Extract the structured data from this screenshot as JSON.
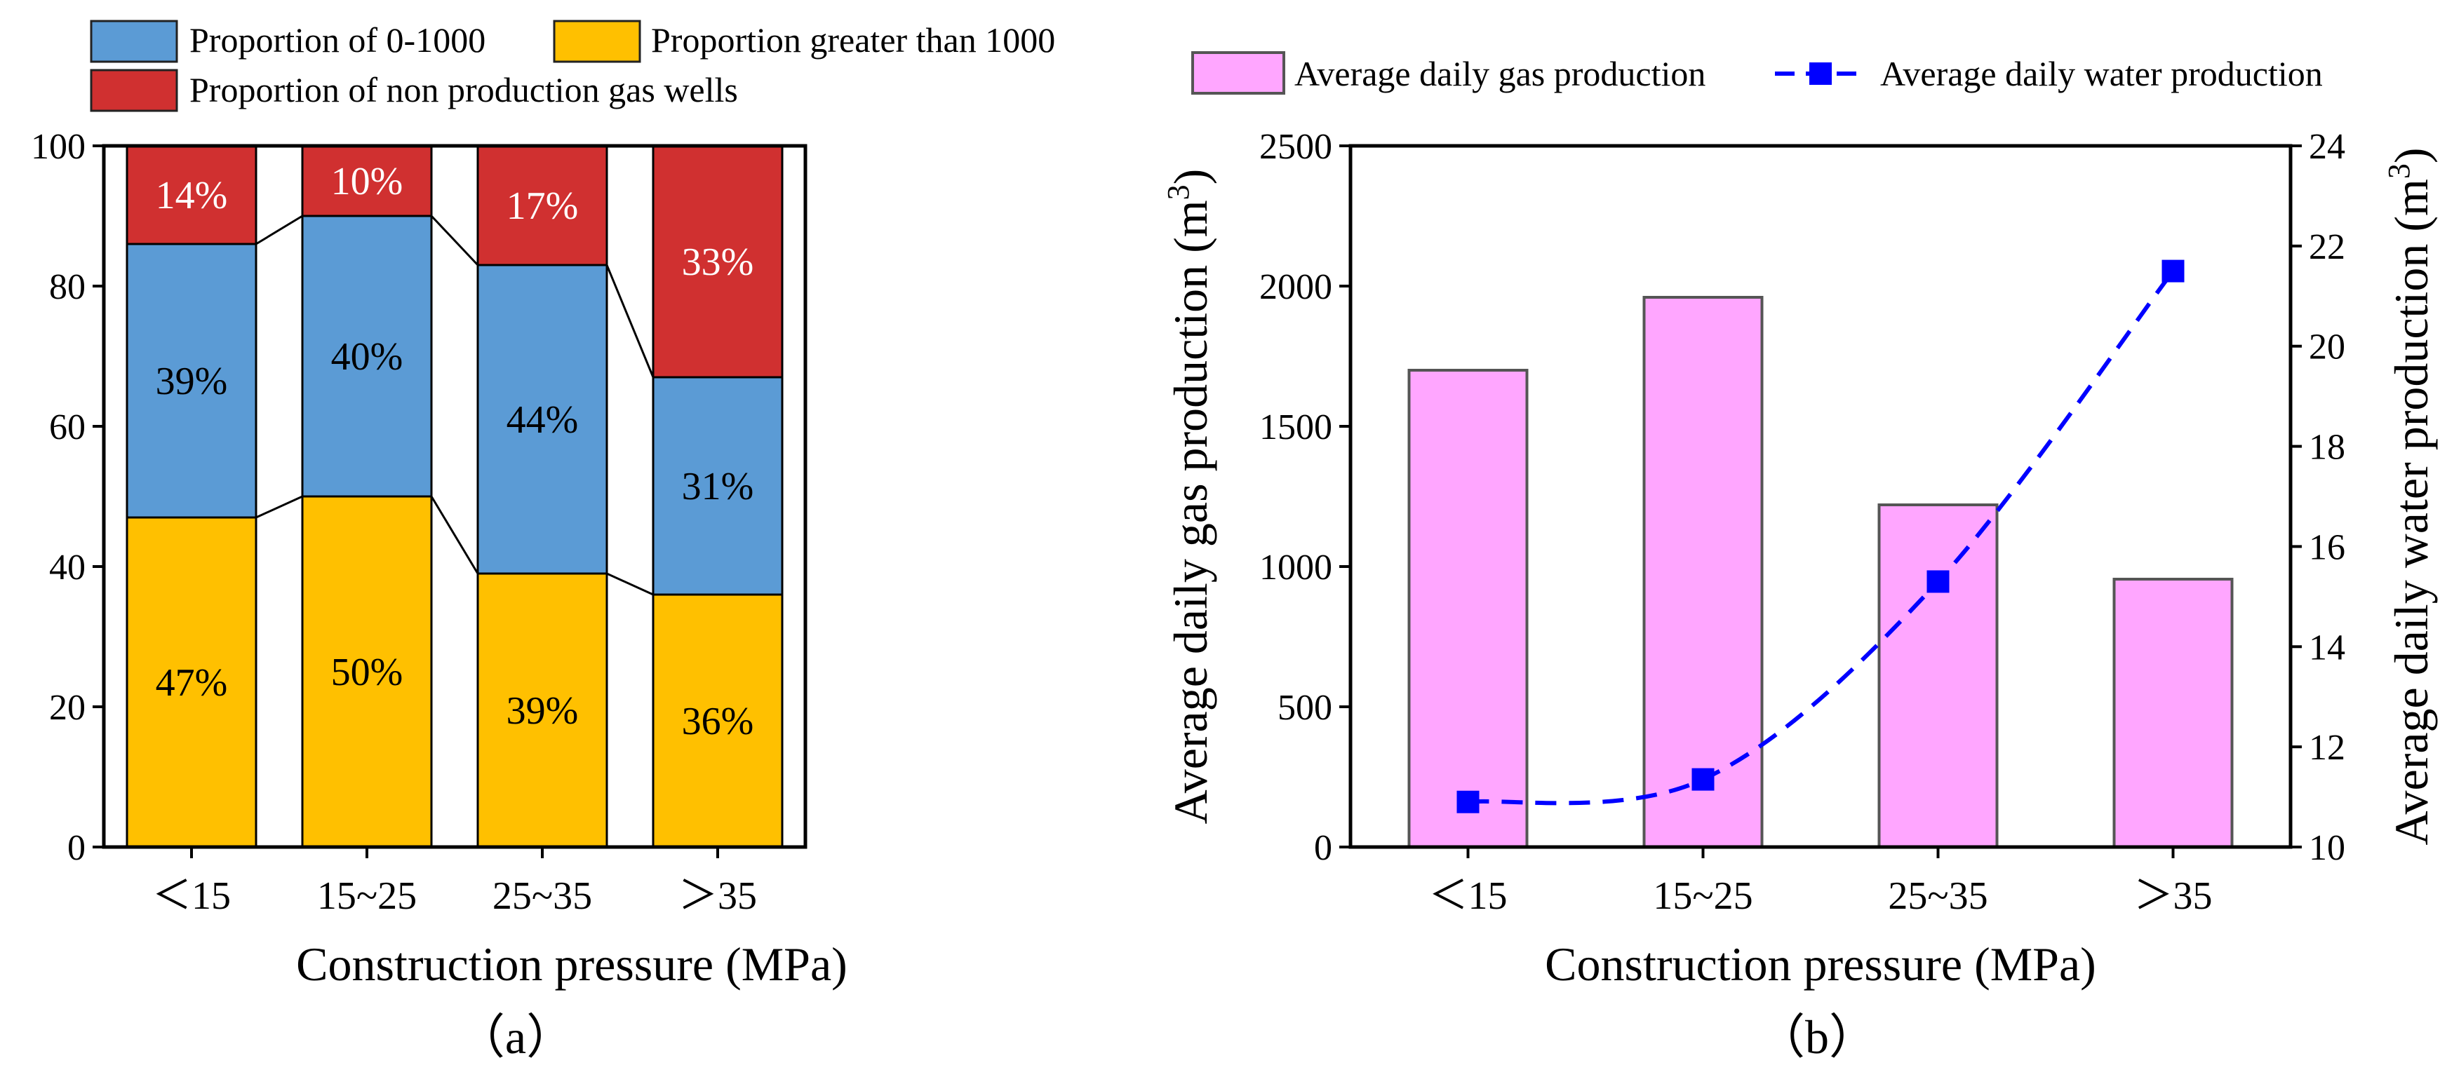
{
  "chart_data": [
    {
      "type": "bar",
      "stacked": true,
      "panel_label": "（a）",
      "xlabel": "Construction pressure (MPa)",
      "ylabel": "",
      "categories": [
        "＜15",
        "15~25",
        "25~35",
        "＞35"
      ],
      "ylim": [
        0,
        100
      ],
      "yticks": [
        0,
        20,
        40,
        60,
        80,
        100
      ],
      "series": [
        {
          "name": "Proportion greater than 1000",
          "color": "#FFC000",
          "values": [
            47,
            50,
            39,
            36
          ],
          "labels": [
            "47%",
            "50%",
            "39%",
            "36%"
          ]
        },
        {
          "name": "Proportion of 0-1000",
          "color": "#5B9BD5",
          "values": [
            39,
            40,
            44,
            31
          ],
          "labels": [
            "39%",
            "40%",
            "44%",
            "31%"
          ]
        },
        {
          "name": "Proportion of non production gas wells",
          "color": "#D03030",
          "values": [
            14,
            10,
            17,
            33
          ],
          "labels": [
            "14%",
            "10%",
            "17%",
            "33%"
          ]
        }
      ],
      "legend": [
        "Proportion of 0-1000",
        "Proportion greater than 1000",
        "Proportion of non production gas wells"
      ],
      "legend_position": "top"
    },
    {
      "type": "bar",
      "panel_label": "（b）",
      "xlabel": "Construction pressure (MPa)",
      "ylabel": "Average daily gas production (m",
      "ylabel_sup": "3",
      "ylabel_close": ")",
      "y2label": "Average daily water production (m",
      "y2label_sup": "3",
      "y2label_close": ")",
      "categories": [
        "＜15",
        "15~25",
        "25~35",
        "＞35"
      ],
      "ylim": [
        0,
        2500
      ],
      "yticks": [
        0,
        500,
        1000,
        1500,
        2000,
        2500
      ],
      "y2lim": [
        10,
        24
      ],
      "y2ticks": [
        10,
        12,
        14,
        16,
        18,
        20,
        22,
        24
      ],
      "series": [
        {
          "name": "Average daily gas production",
          "type": "bar",
          "axis": "left",
          "color": "#FFA6FF",
          "values": [
            1700,
            1960,
            1220,
            955
          ]
        },
        {
          "name": "Average daily water production",
          "type": "line",
          "axis": "right",
          "color": "#0000FF",
          "style": "dashed",
          "marker": "square",
          "values": [
            10.9,
            11.35,
            15.3,
            21.5
          ]
        }
      ],
      "legend_position": "top"
    }
  ]
}
